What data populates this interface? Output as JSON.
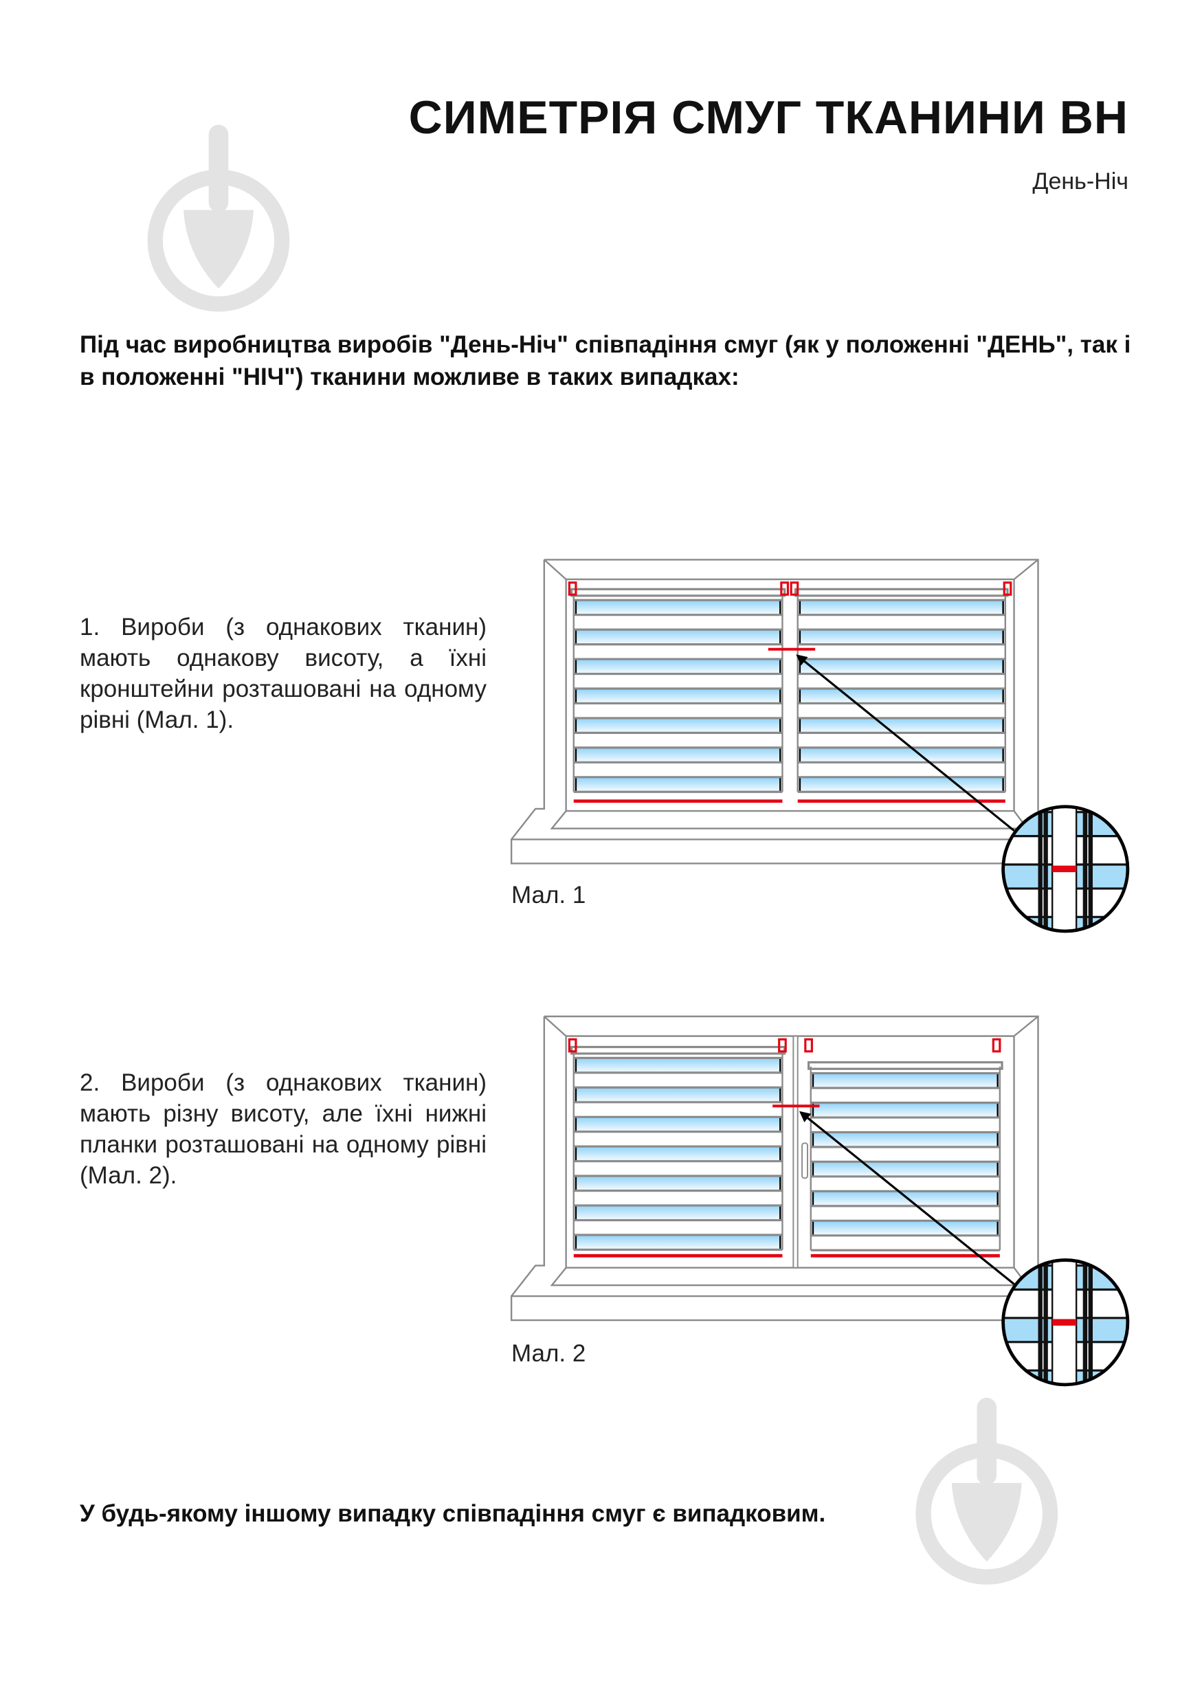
{
  "header": {
    "title": "СИМЕТРІЯ СМУГ ТКАНИНИ ВН",
    "subtitle": "День-Ніч"
  },
  "intro": "Під час виробництва виробів \"День-Ніч\" співпадіння смуг (як у положенні \"ДЕНЬ\", так і в положенні \"НІЧ\") тканини можливе в таких випадках:",
  "cases": [
    {
      "text": "1. Вироби (з однакових тканин) мають однакову висоту, а їхні кронштейни розташовані на одному рівні (Мал. 1).",
      "caption": "Мал. 1"
    },
    {
      "text": "2. Вироби (з однакових тканин) мають різну висоту, але їхні нижні планки розташовані на одному рівні (Мал. 2).",
      "caption": "Мал. 2"
    }
  ],
  "outro": "У будь-якому іншому випадку співпадіння смуг є випадковим.",
  "colors": {
    "accent": "#e30613",
    "fabric_blue": "#8fd3f8",
    "frame": "#8a8a8a",
    "watermark": "#e3e3e3"
  },
  "icons": [
    "watermark-logo-icon",
    "magnifier-detail-icon",
    "arrow-icon"
  ]
}
